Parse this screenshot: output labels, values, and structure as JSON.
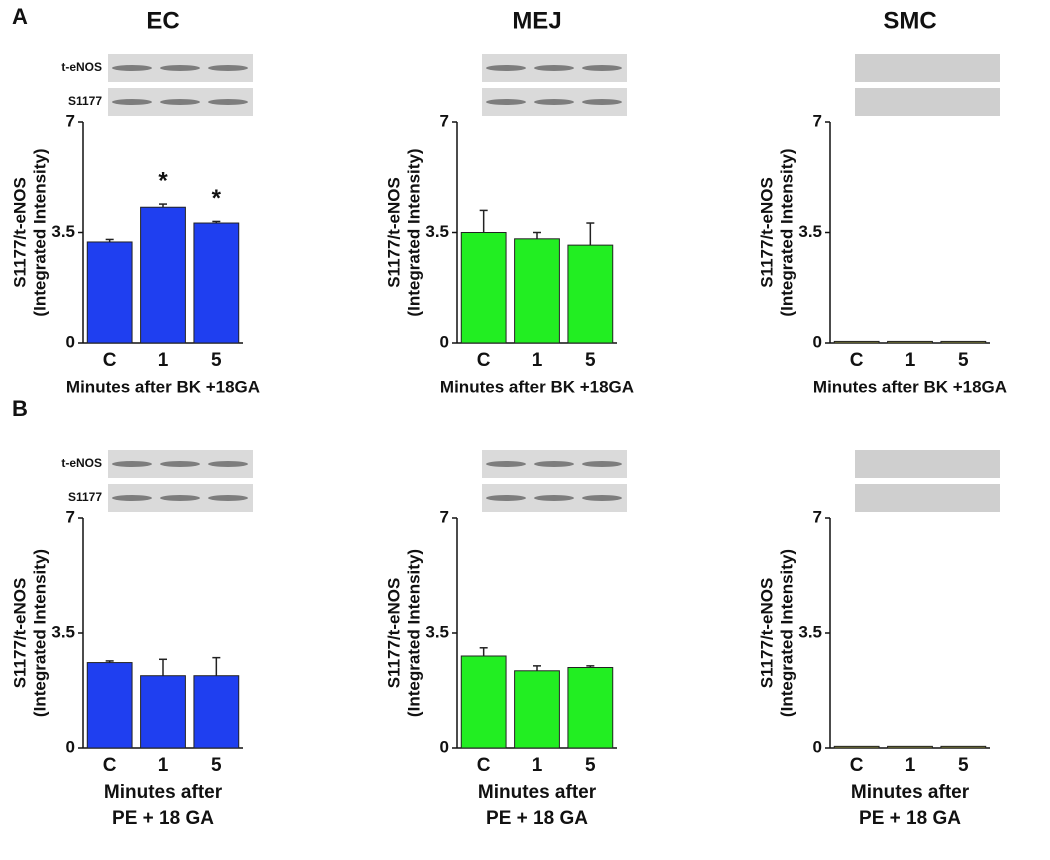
{
  "panel_labels": [
    "A",
    "B"
  ],
  "chart_data": [
    {
      "type": "bar",
      "title": "EC",
      "blot_labels": [
        "t-eNOS",
        "S1177"
      ],
      "categories": [
        "C",
        "1",
        "5"
      ],
      "values": [
        3.2,
        4.3,
        3.8
      ],
      "errors": [
        0.08,
        0.1,
        0.05
      ],
      "color": "#1f3ff0",
      "ylim": [
        0,
        7
      ],
      "yticks": [
        0,
        3.5,
        7
      ],
      "ylabel": [
        "S1177/t-eNOS",
        "(Integrated Intensity)"
      ],
      "xlabel": [
        "Minutes after BK +18GA"
      ],
      "annotations": [
        {
          "x": "1",
          "text": "*"
        },
        {
          "x": "5",
          "text": "*"
        }
      ]
    },
    {
      "type": "bar",
      "title": "MEJ",
      "categories": [
        "C",
        "1",
        "5"
      ],
      "values": [
        3.5,
        3.3,
        3.1
      ],
      "errors": [
        0.7,
        0.2,
        0.7
      ],
      "color": "#22ee22",
      "ylim": [
        0,
        7
      ],
      "yticks": [
        0,
        3.5,
        7
      ],
      "ylabel": [
        "S1177/t-eNOS",
        "(Integrated Intensity)"
      ],
      "xlabel": [
        "Minutes after BK +18GA"
      ]
    },
    {
      "type": "bar",
      "title": "SMC",
      "categories": [
        "C",
        "1",
        "5"
      ],
      "values": [
        0.05,
        0.05,
        0.05
      ],
      "color": "#9a9a40",
      "ylim": [
        0,
        7
      ],
      "yticks": [
        0,
        3.5,
        7
      ],
      "ylabel": [
        "S1177/t-eNOS",
        "(Integrated Intensity)"
      ],
      "xlabel": [
        "Minutes after BK +18GA"
      ]
    },
    {
      "type": "bar",
      "blot_labels": [
        "t-eNOS",
        "S1177"
      ],
      "categories": [
        "C",
        "1",
        "5"
      ],
      "values": [
        2.6,
        2.2,
        2.2
      ],
      "errors": [
        0.05,
        0.5,
        0.55
      ],
      "color": "#1f3ff0",
      "ylim": [
        0,
        7
      ],
      "yticks": [
        0,
        3.5,
        7
      ],
      "ylabel": [
        "S1177/t-eNOS",
        "(Integrated Intensity)"
      ],
      "xlabel": [
        "Minutes after",
        "PE + 18 GA"
      ]
    },
    {
      "type": "bar",
      "categories": [
        "C",
        "1",
        "5"
      ],
      "values": [
        2.8,
        2.35,
        2.45
      ],
      "errors": [
        0.25,
        0.15,
        0.05
      ],
      "color": "#22ee22",
      "ylim": [
        0,
        7
      ],
      "yticks": [
        0,
        3.5,
        7
      ],
      "ylabel": [
        "S1177/t-eNOS",
        "(Integrated Intensity)"
      ],
      "xlabel": [
        "Minutes after",
        "PE + 18 GA"
      ]
    },
    {
      "type": "bar",
      "categories": [
        "C",
        "1",
        "5"
      ],
      "values": [
        0.05,
        0.05,
        0.05
      ],
      "color": "#9a9a40",
      "ylim": [
        0,
        7
      ],
      "yticks": [
        0,
        3.5,
        7
      ],
      "ylabel": [
        "S1177/t-eNOS",
        "(Integrated Intensity)"
      ],
      "xlabel": [
        "Minutes after",
        "PE + 18 GA"
      ]
    }
  ]
}
